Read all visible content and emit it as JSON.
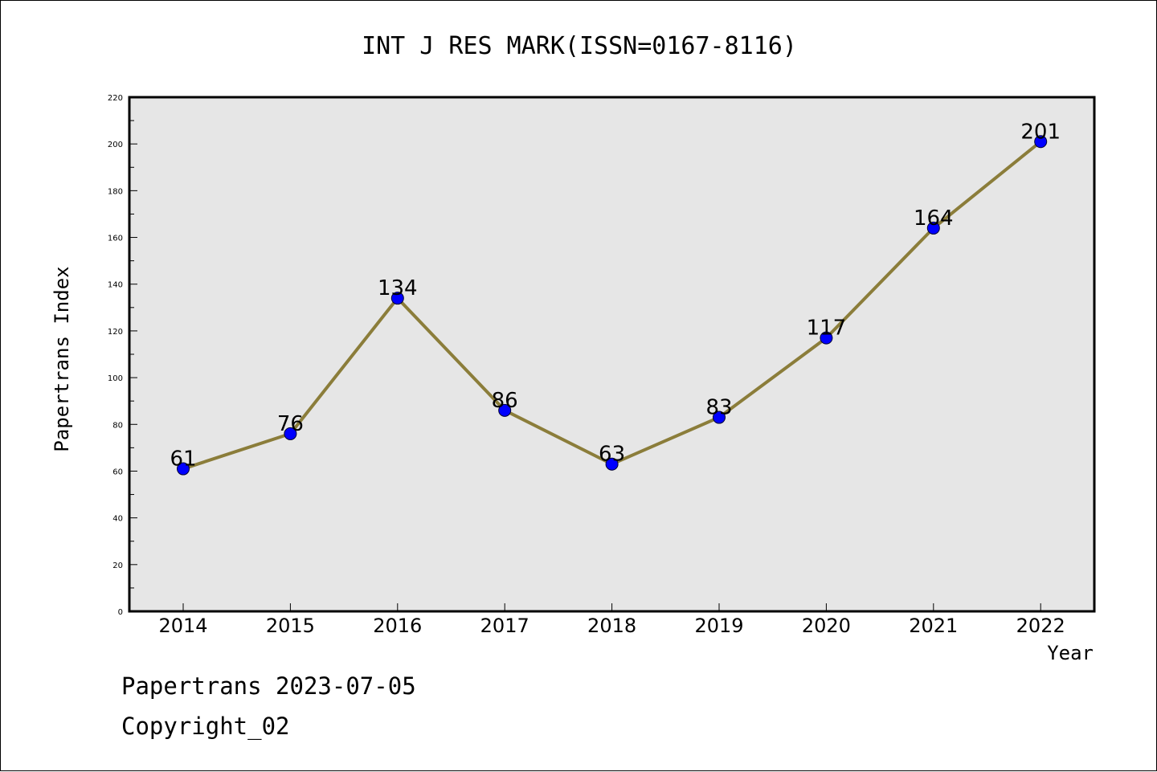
{
  "chart_data": {
    "type": "line",
    "title": "INT J RES MARK(ISSN=0167-8116)",
    "xlabel": "Year",
    "ylabel": "Papertrans Index",
    "categories": [
      "2014",
      "2015",
      "2016",
      "2017",
      "2018",
      "2019",
      "2020",
      "2021",
      "2022"
    ],
    "values": [
      61,
      76,
      134,
      86,
      63,
      83,
      117,
      164,
      201
    ],
    "ylim": [
      0,
      220
    ],
    "yticks": [
      0,
      20,
      40,
      60,
      80,
      100,
      120,
      140,
      160,
      180,
      200,
      220
    ],
    "grid": false,
    "data_labels": true,
    "colors": {
      "line": "#8b7d3a",
      "marker": "#0000ff",
      "plot_bg": "#e6e6e6"
    }
  },
  "footer": {
    "line1": "Papertrans 2023-07-05",
    "line2": "Copyright_02"
  }
}
